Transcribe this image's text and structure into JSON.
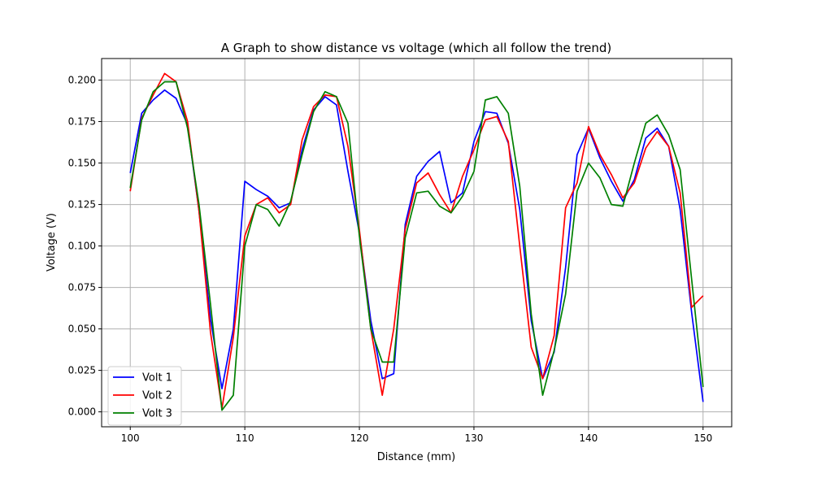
{
  "chart_data": {
    "type": "line",
    "title": "A Graph to show distance vs voltage (which all follow the trend)",
    "xlabel": "Distance (mm)",
    "ylabel": "Voltage (V)",
    "xlim": [
      97.5,
      152.5
    ],
    "ylim": [
      -0.009,
      0.213
    ],
    "xticks": [
      100,
      110,
      120,
      130,
      140,
      150
    ],
    "xtick_labels": [
      "100",
      "110",
      "120",
      "130",
      "140",
      "150"
    ],
    "yticks": [
      0.0,
      0.025,
      0.05,
      0.075,
      0.1,
      0.125,
      0.15,
      0.175,
      0.2
    ],
    "ytick_labels": [
      "0.000",
      "0.025",
      "0.050",
      "0.075",
      "0.100",
      "0.125",
      "0.150",
      "0.175",
      "0.200"
    ],
    "grid": true,
    "legend_position": "lower-left",
    "x": [
      100,
      101,
      102,
      103,
      104,
      105,
      106,
      107,
      108,
      109,
      110,
      111,
      112,
      113,
      114,
      115,
      116,
      117,
      118,
      119,
      120,
      121,
      122,
      123,
      124,
      125,
      126,
      127,
      128,
      129,
      130,
      131,
      132,
      133,
      134,
      135,
      136,
      137,
      138,
      139,
      140,
      141,
      142,
      143,
      144,
      145,
      146,
      147,
      148,
      149,
      150
    ],
    "series": [
      {
        "name": "Volt 1",
        "color": "#0000ff",
        "values": [
          0.144,
          0.18,
          0.188,
          0.194,
          0.189,
          0.173,
          0.121,
          0.056,
          0.014,
          0.05,
          0.139,
          0.134,
          0.13,
          0.123,
          0.126,
          0.158,
          0.182,
          0.19,
          0.185,
          0.145,
          0.108,
          0.055,
          0.02,
          0.023,
          0.113,
          0.142,
          0.151,
          0.157,
          0.126,
          0.132,
          0.163,
          0.181,
          0.18,
          0.162,
          0.122,
          0.055,
          0.02,
          0.036,
          0.087,
          0.155,
          0.171,
          0.153,
          0.139,
          0.127,
          0.14,
          0.165,
          0.171,
          0.16,
          0.122,
          0.06,
          0.006
        ]
      },
      {
        "name": "Volt 2",
        "color": "#ff0000",
        "values": [
          0.133,
          0.177,
          0.191,
          0.204,
          0.199,
          0.175,
          0.121,
          0.048,
          0.002,
          0.045,
          0.106,
          0.125,
          0.129,
          0.12,
          0.125,
          0.164,
          0.184,
          0.191,
          0.19,
          0.16,
          0.11,
          0.05,
          0.01,
          0.05,
          0.11,
          0.138,
          0.144,
          0.131,
          0.12,
          0.142,
          0.158,
          0.176,
          0.178,
          0.163,
          0.1,
          0.039,
          0.02,
          0.046,
          0.123,
          0.138,
          0.172,
          0.155,
          0.143,
          0.129,
          0.138,
          0.159,
          0.169,
          0.16,
          0.132,
          0.063,
          0.07
        ]
      },
      {
        "name": "Volt 3",
        "color": "#008000",
        "values": [
          0.135,
          0.176,
          0.193,
          0.199,
          0.199,
          0.171,
          0.125,
          0.065,
          0.001,
          0.01,
          0.1,
          0.125,
          0.122,
          0.112,
          0.127,
          0.155,
          0.181,
          0.193,
          0.19,
          0.174,
          0.106,
          0.05,
          0.03,
          0.03,
          0.105,
          0.132,
          0.133,
          0.124,
          0.12,
          0.13,
          0.145,
          0.188,
          0.19,
          0.18,
          0.136,
          0.059,
          0.01,
          0.037,
          0.071,
          0.133,
          0.15,
          0.141,
          0.125,
          0.124,
          0.15,
          0.174,
          0.179,
          0.167,
          0.146,
          0.08,
          0.015
        ]
      }
    ]
  }
}
